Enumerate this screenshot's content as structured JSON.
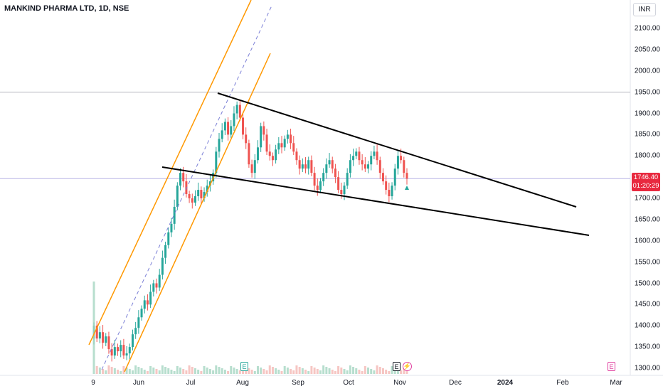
{
  "header": {
    "title": "MANKIND PHARMA LTD, 1D, NSE",
    "currency": "INR"
  },
  "price_tag": {
    "price": "1746.40",
    "countdown": "01:20:29",
    "color": "#e8293f"
  },
  "colors": {
    "up": "#26a69a",
    "down": "#ef5350",
    "channel": "#ff9800",
    "trendline": "#000000"
  },
  "events": [
    {
      "label": "E",
      "color": "#26a69a",
      "near": "Aug"
    },
    {
      "label": "E",
      "color": "#131722",
      "near": "Nov"
    },
    {
      "label": "⚡",
      "color": "#e040a0",
      "near": "Nov"
    },
    {
      "label": "E",
      "color": "#e040a0",
      "near": "Mar"
    }
  ],
  "chart_data": {
    "type": "candlestick",
    "symbol": "MANKIND PHARMA LTD",
    "interval": "1D",
    "exchange": "NSE",
    "y_ticks": [
      "2100.00",
      "2050.00",
      "2000.00",
      "1950.00",
      "1900.00",
      "1850.00",
      "1800.00",
      "1750.00",
      "1700.00",
      "1650.00",
      "1600.00",
      "1550.00",
      "1500.00",
      "1450.00",
      "1400.00",
      "1350.00",
      "1300.00"
    ],
    "x_ticks": [
      {
        "label": "9",
        "bold": false
      },
      {
        "label": "Jun",
        "bold": false
      },
      {
        "label": "Jul",
        "bold": false
      },
      {
        "label": "Aug",
        "bold": false
      },
      {
        "label": "Sep",
        "bold": false
      },
      {
        "label": "Oct",
        "bold": false
      },
      {
        "label": "Nov",
        "bold": false
      },
      {
        "label": "Dec",
        "bold": false
      },
      {
        "label": "2024",
        "bold": true
      },
      {
        "label": "Feb",
        "bold": false
      },
      {
        "label": "Mar",
        "bold": false
      }
    ],
    "ylim": [
      1292,
      2125
    ],
    "horizontal_lines": [
      1950,
      1746.4
    ],
    "last_price": 1746.4,
    "close_series": [
      1400,
      1370,
      1385,
      1360,
      1375,
      1345,
      1330,
      1350,
      1340,
      1355,
      1330,
      1335,
      1350,
      1380,
      1395,
      1420,
      1440,
      1460,
      1450,
      1480,
      1500,
      1490,
      1520,
      1560,
      1590,
      1620,
      1640,
      1680,
      1730,
      1760,
      1740,
      1710,
      1700,
      1690,
      1705,
      1720,
      1700,
      1715,
      1730,
      1740,
      1760,
      1810,
      1840,
      1860,
      1880,
      1850,
      1870,
      1900,
      1920,
      1890,
      1850,
      1830,
      1780,
      1760,
      1790,
      1820,
      1870,
      1850,
      1810,
      1800,
      1790,
      1815,
      1830,
      1820,
      1840,
      1850,
      1830,
      1810,
      1790,
      1770,
      1780,
      1770,
      1790,
      1760,
      1730,
      1720,
      1740,
      1760,
      1780,
      1790,
      1770,
      1750,
      1720,
      1710,
      1730,
      1760,
      1790,
      1800,
      1810,
      1790,
      1780,
      1770,
      1780,
      1800,
      1810,
      1790,
      1760,
      1740,
      1720,
      1705,
      1730,
      1770,
      1800,
      1790,
      1760,
      1746.4
    ],
    "channel_upper": [
      [
        1360,
        1450
      ],
      [
        1953,
        2150
      ]
    ],
    "channel_lower": [
      [
        1295,
        1325
      ],
      [
        1960,
        2075
      ]
    ],
    "channel_mid_dashed": [
      [
        1325,
        1322
      ],
      [
        2130,
        2140
      ]
    ],
    "wedge_upper": [
      [
        1950,
        1945
      ],
      [
        1810,
        1680
      ]
    ],
    "wedge_lower": [
      [
        1775,
        1770
      ],
      [
        1610,
        1630
      ]
    ]
  }
}
